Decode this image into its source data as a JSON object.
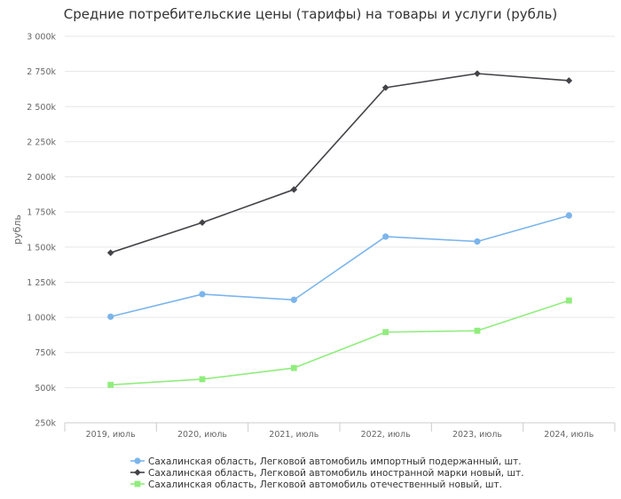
{
  "chart_data": {
    "type": "line",
    "title": "Средние потребительские цены (тарифы) на товары и услуги (рубль)",
    "ylabel": "рубль",
    "xlabel": "",
    "categories": [
      "2019, июль",
      "2020, июль",
      "2021, июль",
      "2022, июль",
      "2023, июль",
      "2024, июль"
    ],
    "ylim": [
      250000,
      3000000
    ],
    "yticks": [
      250000,
      500000,
      750000,
      1000000,
      1250000,
      1500000,
      1750000,
      2000000,
      2250000,
      2500000,
      2750000,
      3000000
    ],
    "ytick_labels": [
      "250k",
      "500k",
      "750k",
      "1 000k",
      "1 250k",
      "1 500k",
      "1 750k",
      "2 000k",
      "2 250k",
      "2 500k",
      "2 750k",
      "3 000k"
    ],
    "grid": true,
    "legend_position": "bottom",
    "series": [
      {
        "name": "Сахалинская область, Легковой автомобиль импортный подержанный, шт.",
        "color": "#7cb5ec",
        "marker": "circle",
        "values": [
          1005000,
          1165000,
          1125000,
          1575000,
          1540000,
          1725000
        ]
      },
      {
        "name": "Сахалинская область, Легковой автомобиль иностранной марки новый, шт.",
        "color": "#434348",
        "marker": "diamond",
        "values": [
          1460000,
          1675000,
          1910000,
          2635000,
          2735000,
          2685000
        ]
      },
      {
        "name": "Сахалинская область, Легковой автомобиль отечественный новый, шт.",
        "color": "#90ed7d",
        "marker": "square",
        "values": [
          520000,
          560000,
          640000,
          895000,
          905000,
          1120000
        ]
      }
    ]
  }
}
